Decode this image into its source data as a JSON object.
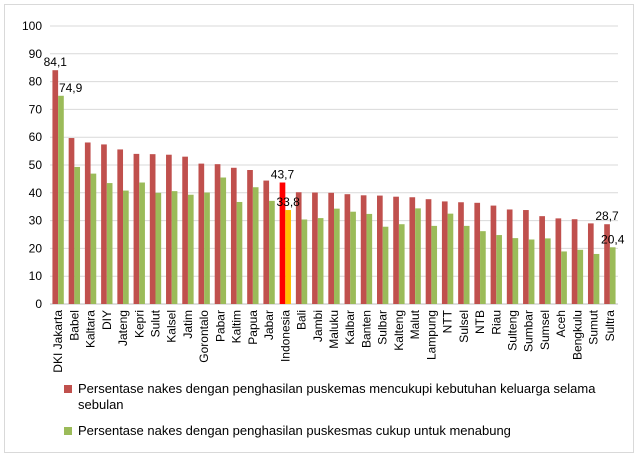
{
  "chart_data": {
    "type": "bar",
    "categories": [
      "DKI Jakarta",
      "Babel",
      "Kaltara",
      "DIY",
      "Jateng",
      "Kepri",
      "Sulut",
      "Kalsel",
      "Jatim",
      "Gorontalo",
      "Pabar",
      "Kaltim",
      "Papua",
      "Jabar",
      "Indonesia",
      "Bali",
      "Jambi",
      "Maluku",
      "Kalbar",
      "Banten",
      "Sulbar",
      "Kalteng",
      "Malut",
      "Lampung",
      "NTT",
      "Sulsel",
      "NTB",
      "Riau",
      "Sulteng",
      "Sumbar",
      "Sumsel",
      "Aceh",
      "Bengkulu",
      "Sumut",
      "Sultra"
    ],
    "series": [
      {
        "name": "Persentase nakes dengan penghasilan puskemas mencukupi kebutuhan keluarga selama sebulan",
        "color": "#c0504d",
        "highlight_color": "#ff0000",
        "values": [
          84.1,
          59.7,
          58.1,
          57.4,
          55.6,
          54.0,
          53.9,
          53.7,
          53.0,
          50.5,
          50.3,
          49.0,
          48.2,
          44.4,
          43.7,
          40.2,
          40.1,
          40.0,
          39.5,
          39.1,
          39.0,
          38.6,
          38.4,
          37.7,
          36.9,
          36.6,
          36.4,
          35.4,
          34.0,
          33.8,
          31.6,
          30.8,
          30.5,
          29.0,
          28.7
        ]
      },
      {
        "name": "Persentase nakes dengan penghasilan puskesmas cukup untuk menabung",
        "color": "#9bbb59",
        "highlight_color": "#ffc000",
        "values": [
          74.9,
          49.3,
          46.9,
          43.5,
          40.8,
          43.7,
          40.0,
          40.6,
          39.3,
          40.1,
          45.5,
          36.7,
          42.0,
          37.1,
          33.8,
          30.4,
          30.9,
          34.3,
          33.2,
          32.4,
          27.8,
          28.7,
          34.4,
          28.1,
          32.5,
          28.1,
          26.2,
          24.8,
          23.7,
          23.2,
          23.6,
          18.9,
          19.5,
          18.0,
          20.4
        ]
      }
    ],
    "highlight_category": "Indonesia",
    "data_labels": [
      {
        "category": "DKI Jakarta",
        "series": 0,
        "text": "84,1"
      },
      {
        "category": "DKI Jakarta",
        "series": 1,
        "text": "74,9"
      },
      {
        "category": "Indonesia",
        "series": 0,
        "text": "43,7"
      },
      {
        "category": "Indonesia",
        "series": 1,
        "text": "33,8"
      },
      {
        "category": "Sultra",
        "series": 0,
        "text": "28,7"
      },
      {
        "category": "Sultra",
        "series": 1,
        "text": "20,4"
      }
    ],
    "ylim": [
      0,
      100
    ],
    "yticks": [
      "0",
      "10",
      "20",
      "30",
      "40",
      "50",
      "60",
      "70",
      "80",
      "90",
      "100"
    ],
    "grid": true,
    "legend_position": "bottom"
  }
}
